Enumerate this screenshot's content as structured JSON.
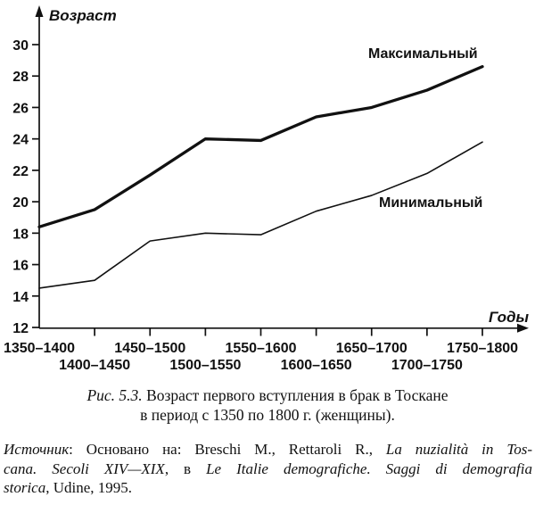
{
  "chart_data": {
    "type": "line",
    "title": "",
    "ylabel": "Возраст",
    "xlabel": "Годы",
    "categories": [
      "1350–1400",
      "1400–1450",
      "1450–1500",
      "1500–1550",
      "1550–1600",
      "1600–1650",
      "1650–1700",
      "1700–1750",
      "1750–1800"
    ],
    "y_ticks": [
      30,
      28,
      26,
      24,
      22,
      20,
      18,
      16,
      14,
      12
    ],
    "ylim": [
      12,
      31
    ],
    "grid": "off",
    "legend_position": "inline-annotations",
    "line_color": "#111111",
    "series": [
      {
        "name": "Максимальный",
        "style": "thick",
        "values": [
          18.4,
          19.5,
          21.7,
          24.0,
          23.9,
          25.4,
          26.0,
          27.1,
          28.6
        ]
      },
      {
        "name": "Минимальный",
        "style": "thin",
        "values": [
          14.5,
          15.0,
          17.5,
          18.0,
          17.9,
          19.4,
          20.4,
          21.8,
          23.8
        ]
      }
    ]
  },
  "figure": {
    "caption": {
      "fig_label": "Рис. 5.3.",
      "line1_rest": " Возраст первого вступления в брак в Тоскане",
      "line2": "в период с 1350 по 1800 г. (женщины)."
    },
    "source": {
      "line1_a": "Источник",
      "line1_b": ": Основано на: Breschi M., Rettaroli R., ",
      "line1_c": "La nuzialità in Tos-",
      "line2_a": "cana. Secoli XIV—XIX",
      "line2_b": ", в ",
      "line2_c": "Le Italie demografiche. Saggi di demografia",
      "line3_a": "storica",
      "line3_b": ", Udine, 1995."
    }
  }
}
